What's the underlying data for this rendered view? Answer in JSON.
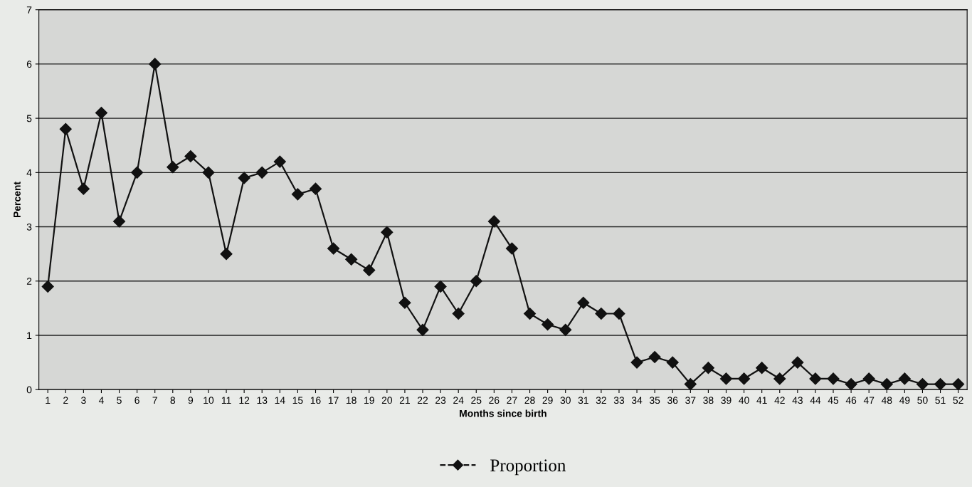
{
  "chart_data": {
    "type": "line",
    "xlabel": "Months since birth",
    "ylabel": "Percent",
    "categories": [
      "1",
      "2",
      "3",
      "4",
      "5",
      "6",
      "7",
      "8",
      "9",
      "10",
      "11",
      "12",
      "13",
      "14",
      "15",
      "16",
      "17",
      "18",
      "19",
      "20",
      "21",
      "22",
      "23",
      "24",
      "25",
      "26",
      "27",
      "28",
      "29",
      "30",
      "31",
      "32",
      "33",
      "34",
      "35",
      "36",
      "37",
      "38",
      "39",
      "40",
      "41",
      "42",
      "43",
      "44",
      "45",
      "46",
      "47",
      "48",
      "49",
      "50",
      "51",
      "52"
    ],
    "series": [
      {
        "name": "Proportion",
        "color": "#111111",
        "values": [
          1.9,
          4.8,
          3.7,
          5.1,
          3.1,
          4.0,
          6.0,
          4.1,
          4.3,
          4.0,
          2.5,
          3.9,
          4.0,
          4.2,
          3.6,
          3.7,
          2.6,
          2.4,
          2.2,
          2.9,
          1.6,
          1.1,
          1.9,
          1.4,
          2.0,
          3.1,
          2.6,
          1.4,
          1.2,
          1.1,
          1.6,
          1.4,
          1.4,
          0.5,
          0.6,
          0.5,
          0.1,
          0.4,
          0.2,
          0.2,
          0.4,
          0.2,
          0.5,
          0.2,
          0.2,
          0.1,
          0.2,
          0.1,
          0.2,
          0.1,
          0.1,
          0.1
        ]
      }
    ],
    "ylim": [
      0,
      7
    ],
    "yticks": [
      0,
      1,
      2,
      3,
      4,
      5,
      6,
      7
    ],
    "grid": "y",
    "legend": "bottom",
    "marker": "diamond",
    "line_style": "solid"
  }
}
